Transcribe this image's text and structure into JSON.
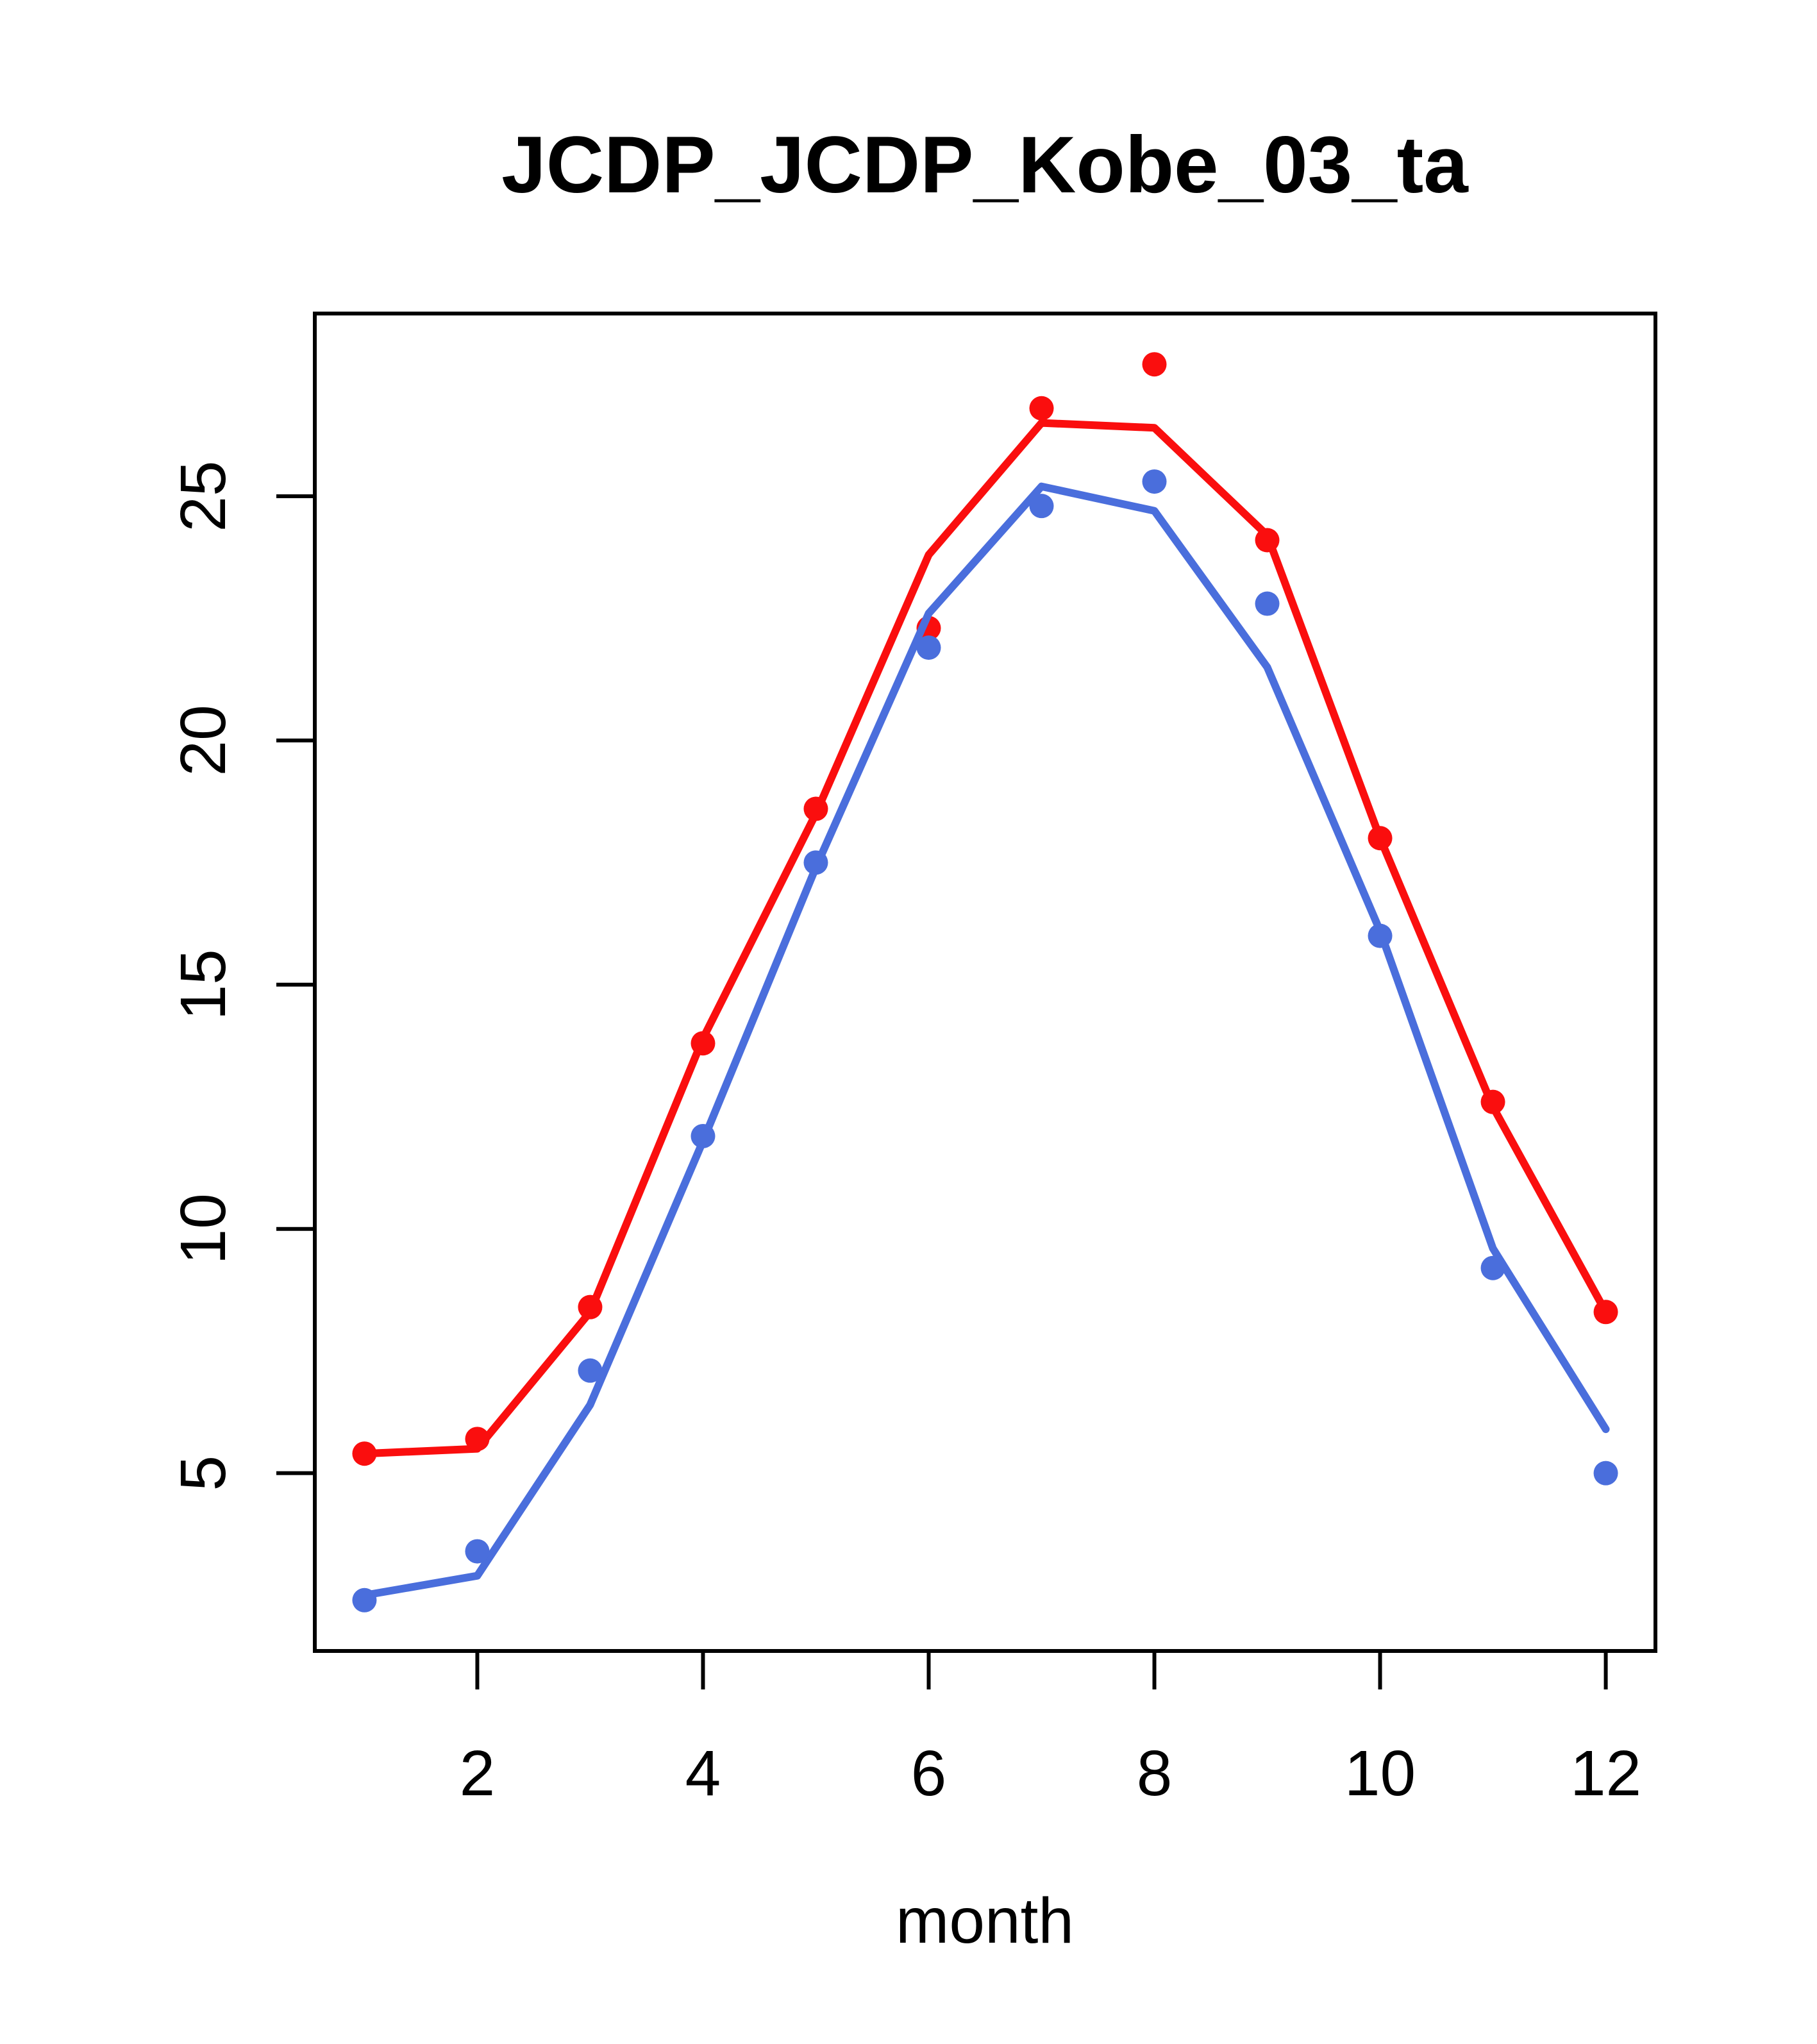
{
  "chart_data": {
    "type": "line",
    "title": "JCDP_JCDP_Kobe_03_ta",
    "xlabel": "month",
    "ylabel": "",
    "x": [
      1,
      2,
      3,
      4,
      5,
      6,
      7,
      8,
      9,
      10,
      11,
      12
    ],
    "series": [
      {
        "name": "red-line",
        "kind": "line",
        "color": "#FA0E0E",
        "values": [
          5.4,
          5.5,
          8.3,
          13.9,
          18.5,
          23.8,
          26.5,
          26.4,
          24.2,
          18.0,
          12.5,
          8.3
        ]
      },
      {
        "name": "red-points",
        "kind": "points",
        "color": "#FA0E0E",
        "values": [
          5.4,
          5.7,
          8.4,
          13.8,
          18.6,
          22.3,
          26.8,
          27.7,
          24.1,
          18.0,
          12.6,
          8.3
        ]
      },
      {
        "name": "blue-line",
        "kind": "line",
        "color": "#4A6EDC",
        "values": [
          2.5,
          2.9,
          6.4,
          11.8,
          17.4,
          22.6,
          25.2,
          24.7,
          21.5,
          16.1,
          9.6,
          5.9
        ]
      },
      {
        "name": "blue-points",
        "kind": "points",
        "color": "#4A6EDC",
        "values": [
          2.4,
          3.4,
          7.1,
          11.9,
          17.5,
          21.9,
          24.8,
          25.3,
          22.8,
          16.0,
          9.2,
          5.0
        ]
      }
    ],
    "x_ticks": [
      2,
      4,
      6,
      8,
      10,
      12
    ],
    "y_ticks": [
      5,
      10,
      15,
      20,
      25
    ],
    "x_range": [
      0.56,
      12.44
    ],
    "y_range": [
      1.36,
      28.74
    ],
    "grid": false,
    "legend": null
  },
  "styles": {
    "background": "#FFFFFF",
    "axis_color": "#000000",
    "line_width": 12,
    "point_radius": 19,
    "box_stroke": 6,
    "tick_length": 60
  }
}
